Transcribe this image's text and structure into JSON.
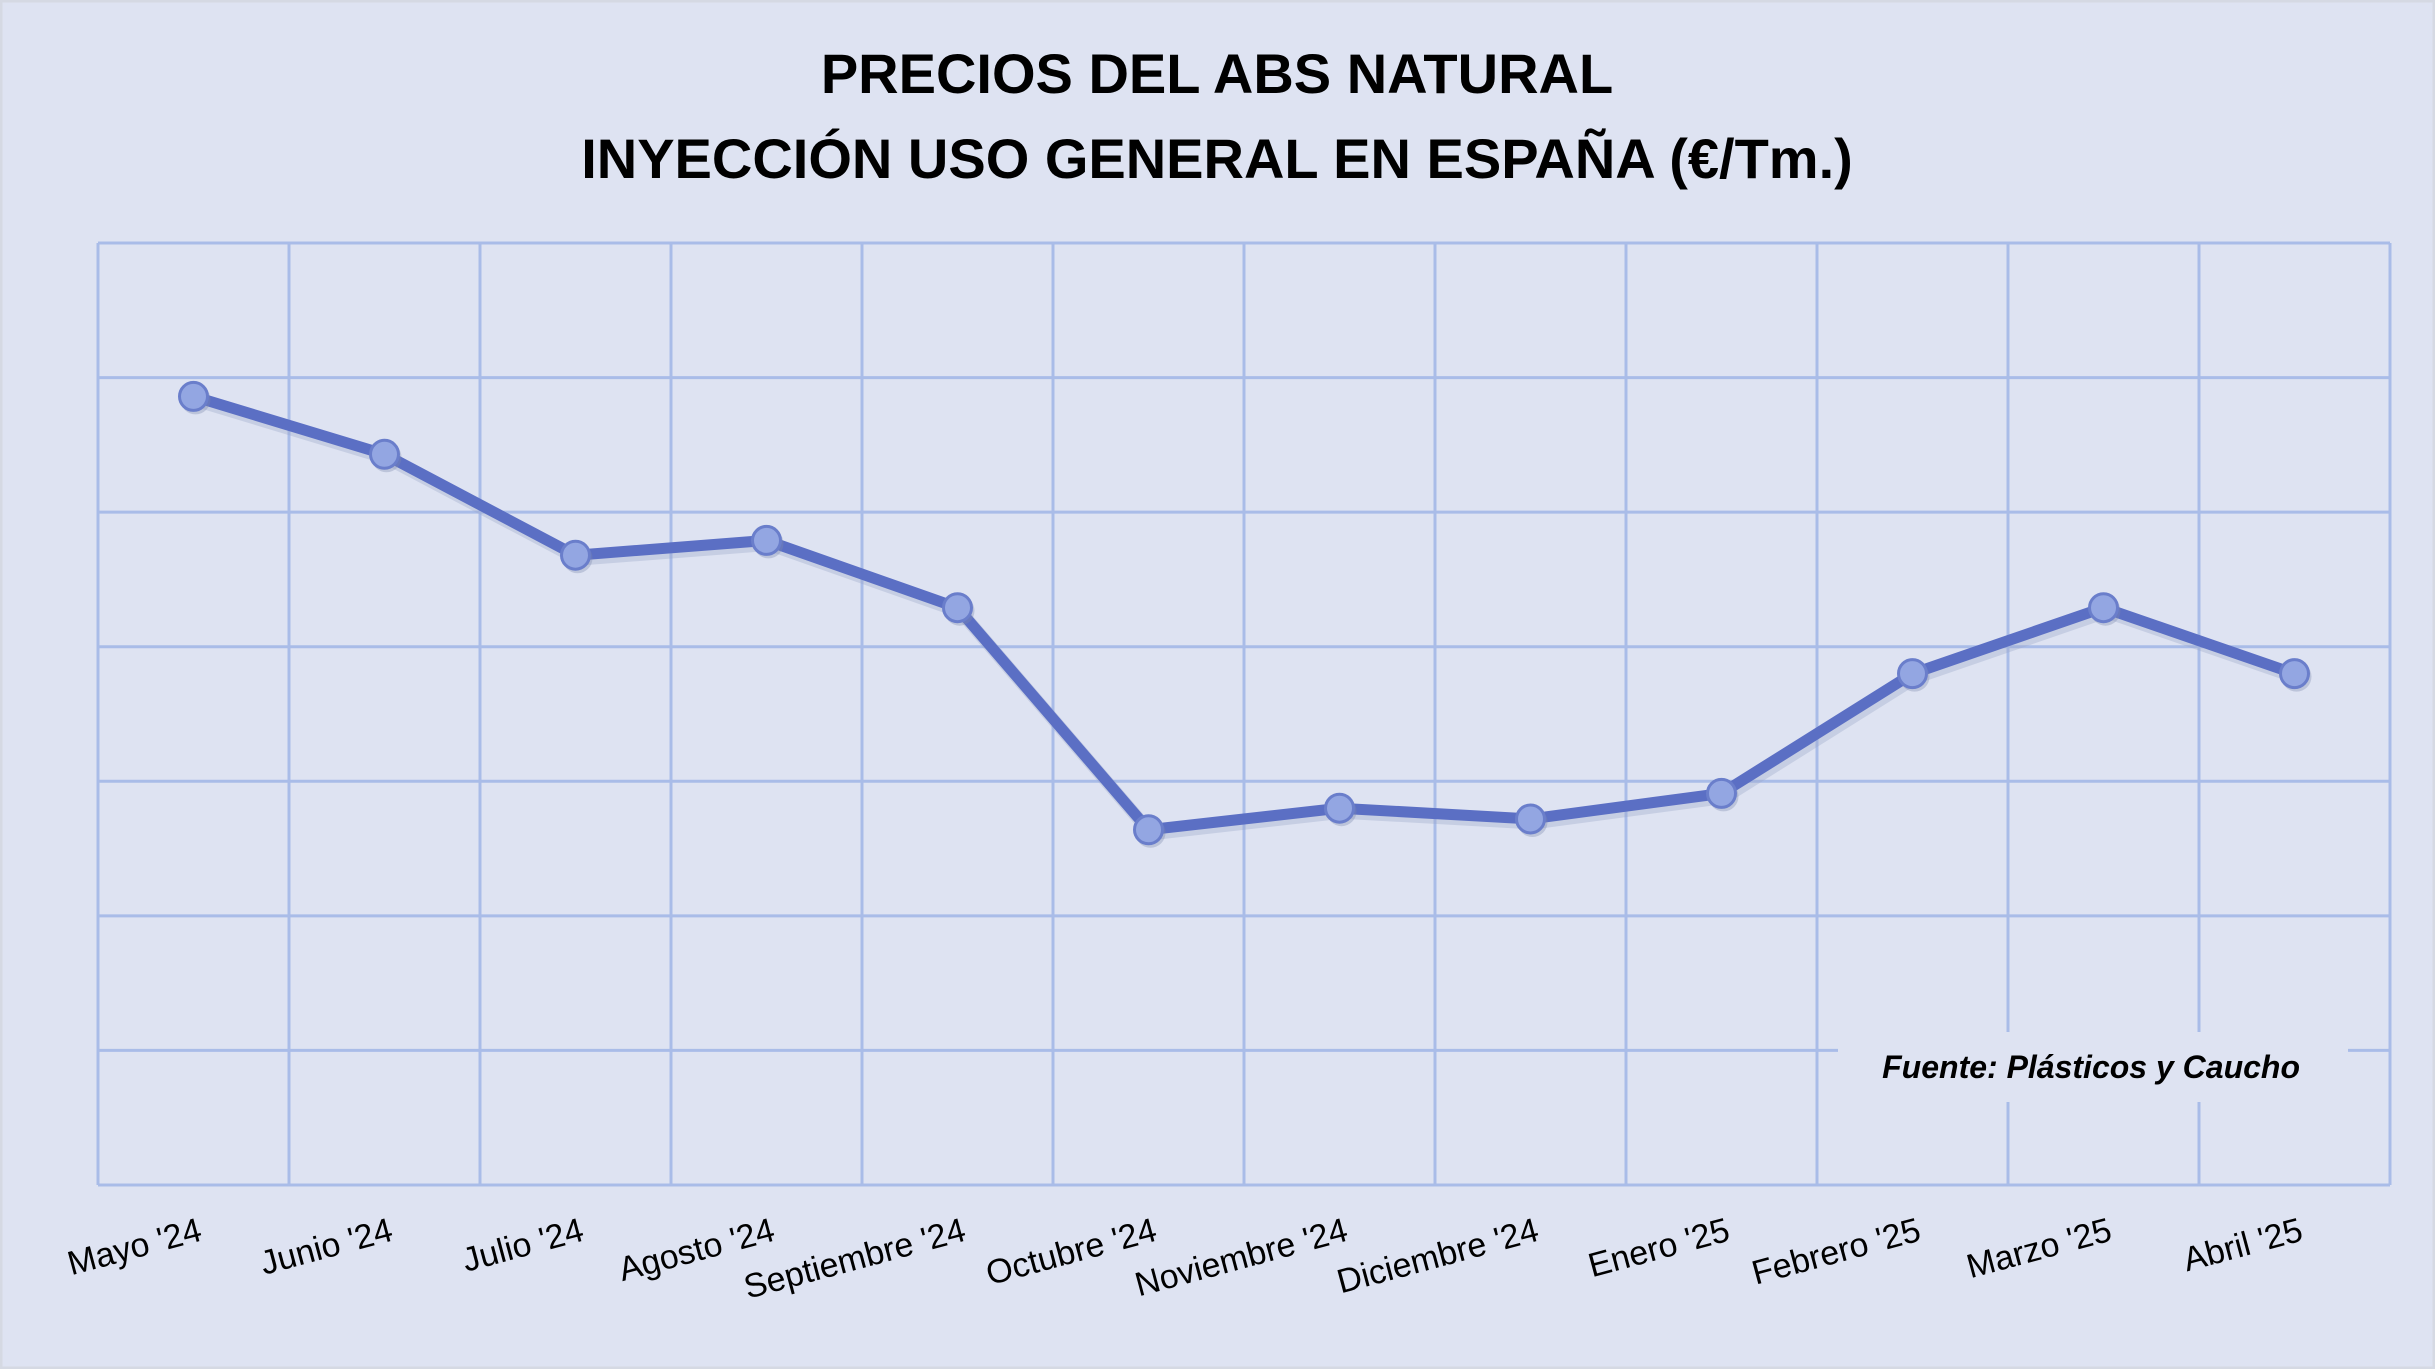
{
  "chart_data": {
    "type": "line",
    "title_lines": [
      "PRECIOS DEL ABS NATURAL",
      "INYECCIÓN USO GENERAL EN ESPAÑA (€/Tm.)"
    ],
    "categories": [
      "Mayo '24",
      "Junio '24",
      "Julio '24",
      "Agosto '24",
      "Septiembre '24",
      "Octubre '24",
      "Noviembre '24",
      "Diciembre '24",
      "Enero '25",
      "Febrero '25",
      "Marzo '25",
      "Abril '25"
    ],
    "series": [
      {
        "values": [
          5.86,
          5.43,
          4.68,
          4.79,
          4.29,
          2.64,
          2.8,
          2.72,
          2.91,
          3.8,
          4.29,
          3.8
        ]
      }
    ],
    "ylim": [
      0,
      7
    ],
    "y_tick_labels_shown": false,
    "grid": true,
    "annotation": "Fuente: Plásticos y Caucho",
    "colors": {
      "background": "#DEE3F2",
      "frame": "#D5D9E3",
      "grid": "#A9BCE8",
      "line": "#5B6FC4",
      "marker_fill": "#93A6E2",
      "marker_stroke": "#6A7ECB"
    }
  }
}
